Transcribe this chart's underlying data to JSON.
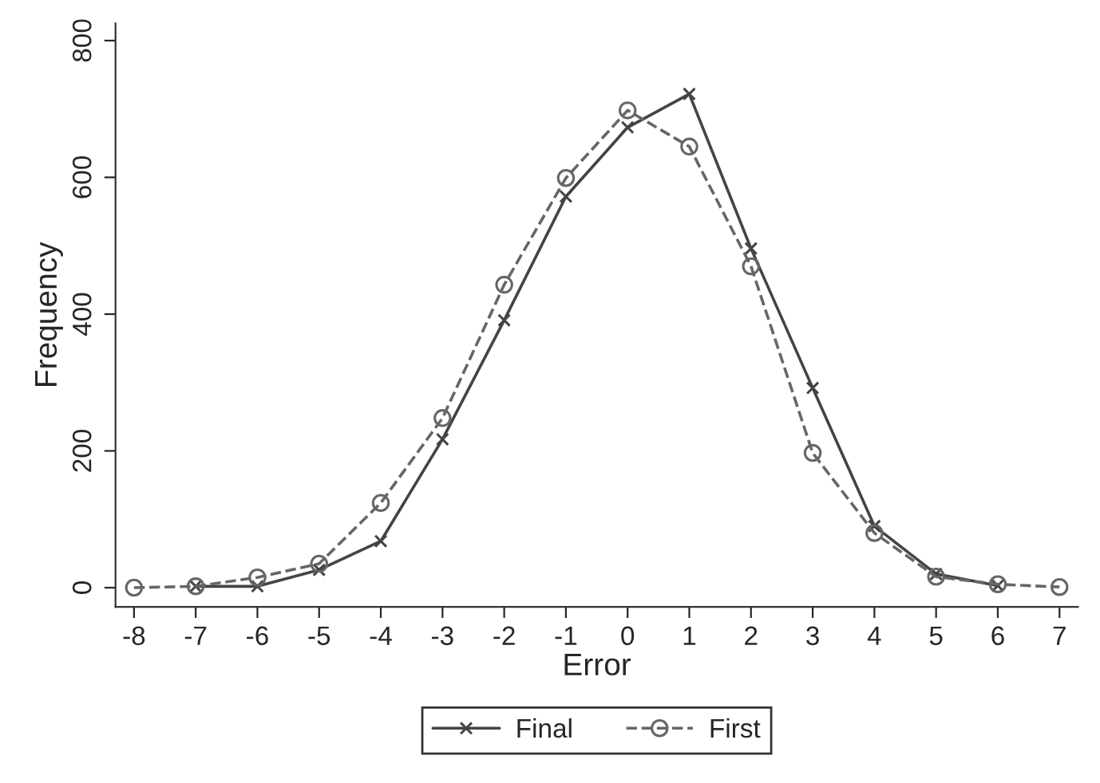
{
  "chart_data": {
    "type": "line",
    "xlabel": "Error",
    "ylabel": "Frequency",
    "xlim": [
      -8.3,
      7.3
    ],
    "xticks": [
      -8,
      -7,
      -6,
      -5,
      -4,
      -3,
      -2,
      -1,
      0,
      1,
      2,
      3,
      4,
      5,
      6,
      7
    ],
    "ylim": [
      -28,
      825
    ],
    "yticks": [
      0,
      200,
      400,
      600,
      800
    ],
    "grid": false,
    "legend": "bottom",
    "series": [
      {
        "name": "Final",
        "color": "#444444",
        "marker": "cross",
        "line_style": "solid",
        "x": [
          -7,
          -6,
          -5,
          -4,
          -3,
          -2,
          -1,
          0,
          1,
          2,
          3,
          4,
          5,
          6
        ],
        "values": [
          2,
          2,
          26,
          68,
          217,
          391,
          572,
          673,
          722,
          496,
          292,
          90,
          20,
          3
        ]
      },
      {
        "name": "First",
        "color": "#666666",
        "marker": "circle",
        "line_style": "dashed",
        "x": [
          -8,
          -7,
          -6,
          -5,
          -4,
          -3,
          -2,
          -1,
          0,
          1,
          2,
          3,
          4,
          5,
          6,
          7
        ],
        "values": [
          0,
          2,
          15,
          35,
          124,
          248,
          443,
          599,
          698,
          645,
          470,
          197,
          80,
          16,
          5,
          1
        ]
      }
    ]
  }
}
